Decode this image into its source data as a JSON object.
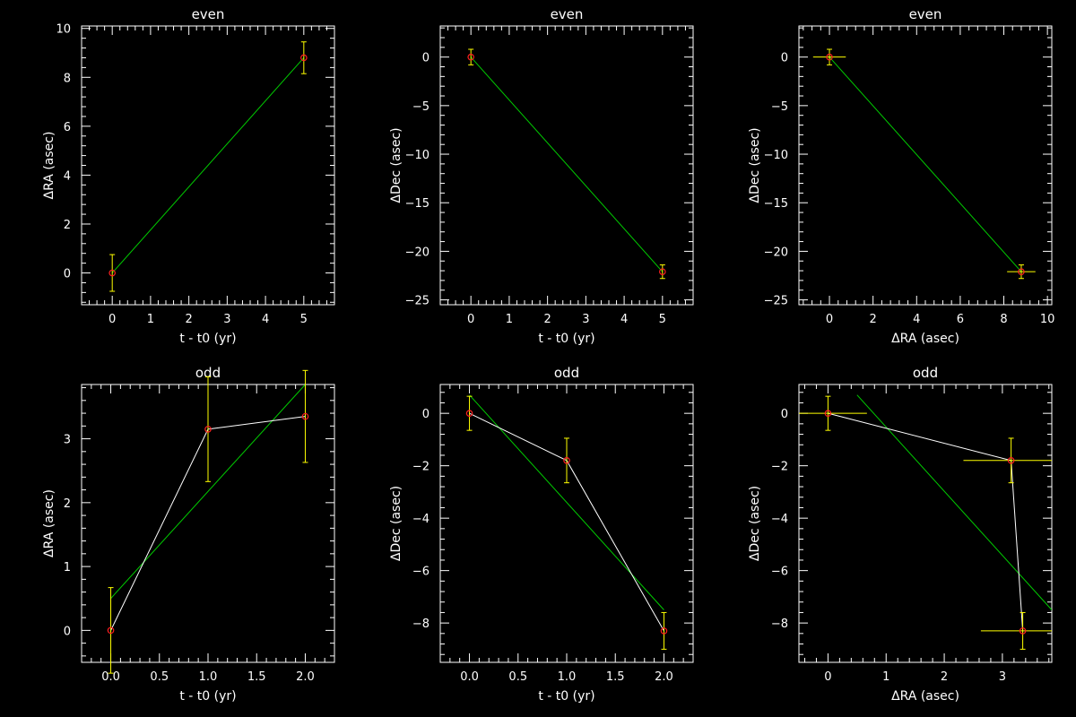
{
  "chart_data": [
    {
      "type": "scatter",
      "title": "even",
      "xlabel": "t - t0 (yr)",
      "ylabel": "ΔRA (asec)",
      "xlim": [
        -0.8,
        5.8
      ],
      "ylim": [
        -1.3,
        10.1
      ],
      "xticks": [
        0,
        1,
        2,
        3,
        4,
        5
      ],
      "yticks": [
        0,
        2,
        4,
        6,
        8,
        10
      ],
      "grid": false,
      "points": {
        "x": [
          0,
          5
        ],
        "y": [
          0,
          8.8
        ],
        "yerr": [
          0.75,
          0.65
        ],
        "xerr": [
          0,
          0
        ]
      },
      "fit_line": {
        "x": [
          0,
          5
        ],
        "y": [
          0,
          8.8
        ]
      }
    },
    {
      "type": "scatter",
      "title": "even",
      "xlabel": "t - t0 (yr)",
      "ylabel": "ΔDec (asec)",
      "xlim": [
        -0.8,
        5.8
      ],
      "ylim": [
        -25.5,
        3.2
      ],
      "xticks": [
        0,
        1,
        2,
        3,
        4,
        5
      ],
      "yticks": [
        0,
        -5,
        -10,
        -15,
        -20,
        -25
      ],
      "grid": false,
      "points": {
        "x": [
          0,
          5
        ],
        "y": [
          0,
          -22.1
        ],
        "yerr": [
          0.8,
          0.7
        ],
        "xerr": [
          0,
          0
        ]
      },
      "fit_line": {
        "x": [
          0,
          5
        ],
        "y": [
          0,
          -22.1
        ]
      }
    },
    {
      "type": "scatter",
      "title": "even",
      "xlabel": "ΔRA (asec)",
      "ylabel": "ΔDec (asec)",
      "xlim": [
        -1.4,
        10.2
      ],
      "ylim": [
        -25.5,
        3.2
      ],
      "xticks": [
        0,
        2,
        4,
        6,
        8,
        10
      ],
      "yticks": [
        0,
        -5,
        -10,
        -15,
        -20,
        -25
      ],
      "grid": false,
      "points": {
        "x": [
          0,
          8.8
        ],
        "y": [
          0,
          -22.1
        ],
        "yerr": [
          0.8,
          0.7
        ],
        "xerr": [
          0.75,
          0.65
        ]
      },
      "fit_line": {
        "x": [
          0,
          8.8
        ],
        "y": [
          0,
          -22.1
        ]
      }
    },
    {
      "type": "scatter",
      "title": "odd",
      "xlabel": "t - t0 (yr)",
      "ylabel": "ΔRA (asec)",
      "xlim": [
        -0.3,
        2.3
      ],
      "ylim": [
        -0.5,
        3.85
      ],
      "xticks": [
        0.0,
        0.5,
        1.0,
        1.5,
        2.0
      ],
      "yticks": [
        0,
        1,
        2,
        3
      ],
      "grid": false,
      "points": {
        "x": [
          0,
          1,
          2
        ],
        "y": [
          0,
          3.15,
          3.35
        ],
        "yerr": [
          0.67,
          0.82,
          0.72
        ],
        "xerr": [
          0,
          0,
          0
        ]
      },
      "connect_line": {
        "x": [
          0,
          1,
          2
        ],
        "y": [
          0,
          3.15,
          3.35
        ]
      },
      "fit_line": {
        "x": [
          0,
          2
        ],
        "y": [
          0.5,
          3.85
        ]
      }
    },
    {
      "type": "scatter",
      "title": "odd",
      "xlabel": "t - t0 (yr)",
      "ylabel": "ΔDec (asec)",
      "xlim": [
        -0.3,
        2.3
      ],
      "ylim": [
        -9.5,
        1.1
      ],
      "xticks": [
        0.0,
        0.5,
        1.0,
        1.5,
        2.0
      ],
      "yticks": [
        0,
        -2,
        -4,
        -6,
        -8
      ],
      "grid": false,
      "points": {
        "x": [
          0,
          1,
          2
        ],
        "y": [
          0,
          -1.8,
          -8.3
        ],
        "yerr": [
          0.65,
          0.85,
          0.7
        ],
        "xerr": [
          0,
          0,
          0
        ]
      },
      "connect_line": {
        "x": [
          0,
          1,
          2
        ],
        "y": [
          0,
          -1.8,
          -8.3
        ]
      },
      "fit_line": {
        "x": [
          0,
          2
        ],
        "y": [
          0.7,
          -7.5
        ]
      }
    },
    {
      "type": "scatter",
      "title": "odd",
      "xlabel": "ΔRA (asec)",
      "ylabel": "ΔDec (asec)",
      "xlim": [
        -0.5,
        3.85
      ],
      "ylim": [
        -9.5,
        1.1
      ],
      "xticks": [
        0,
        1,
        2,
        3
      ],
      "yticks": [
        0,
        -2,
        -4,
        -6,
        -8
      ],
      "grid": false,
      "points": {
        "x": [
          0,
          3.15,
          3.35
        ],
        "y": [
          0,
          -1.8,
          -8.3
        ],
        "yerr": [
          0.65,
          0.85,
          0.7
        ],
        "xerr": [
          0.67,
          0.82,
          0.72
        ]
      },
      "connect_line": {
        "x": [
          0,
          3.15,
          3.35
        ],
        "y": [
          0,
          -1.8,
          -8.3
        ]
      },
      "fit_line": {
        "x": [
          0.5,
          3.85
        ],
        "y": [
          0.7,
          -7.5
        ]
      }
    }
  ],
  "colors": {
    "background": "#000000",
    "axes": "#ffffff",
    "fit_line": "#00cc00",
    "connect_line": "#ffffff",
    "error_bars": "#ffff00",
    "markers": "#ff2020"
  }
}
